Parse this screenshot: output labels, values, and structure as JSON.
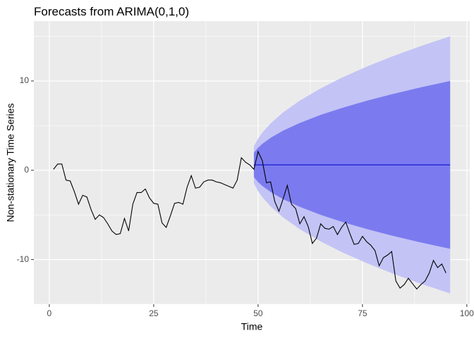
{
  "chart_data": {
    "type": "line",
    "title": "Forecasts from ARIMA(0,1,0)",
    "x_label": "Time",
    "y_label": "Non-stationary Time Series",
    "xlim": [
      -3.7,
      100.7
    ],
    "ylim": [
      -15,
      16.7
    ],
    "xticks": [
      0,
      25,
      50,
      75,
      100
    ],
    "yticks": [
      -10,
      0,
      10
    ],
    "grid": true,
    "series": [
      {
        "color": "#000000",
        "x": [
          1,
          2,
          3,
          4,
          5,
          6,
          7,
          8,
          9,
          10,
          11,
          12,
          13,
          14,
          15,
          16,
          17,
          18,
          19,
          20,
          21,
          22,
          23,
          24,
          25,
          26,
          27,
          28,
          29,
          30,
          31,
          32,
          33,
          34,
          35,
          36,
          37,
          38,
          39,
          40,
          41,
          42,
          43,
          44,
          45,
          46,
          47,
          48,
          49,
          50,
          51,
          52,
          53,
          54,
          55,
          56,
          57,
          58,
          59,
          60,
          61,
          62,
          63,
          64,
          65,
          66,
          67,
          68,
          69,
          70,
          71,
          72,
          73,
          74,
          75,
          76,
          77,
          78,
          79,
          80,
          81,
          82,
          83,
          84,
          85,
          86,
          87,
          88,
          89,
          90,
          91,
          92,
          93,
          94,
          95
        ],
        "values": [
          0.1,
          0.7,
          0.7,
          -1.1,
          -1.2,
          -2.4,
          -3.8,
          -2.8,
          -3.0,
          -4.4,
          -5.5,
          -5.0,
          -5.3,
          -6.0,
          -6.8,
          -7.2,
          -7.1,
          -5.4,
          -6.8,
          -3.8,
          -2.5,
          -2.5,
          -2.1,
          -3.1,
          -3.7,
          -3.8,
          -5.9,
          -6.4,
          -5.1,
          -3.7,
          -3.6,
          -3.8,
          -1.9,
          -0.6,
          -2.0,
          -1.9,
          -1.3,
          -1.1,
          -1.1,
          -1.3,
          -1.4,
          -1.6,
          -1.8,
          -2.0,
          -1.1,
          1.4,
          0.9,
          0.6,
          0.1,
          2.1,
          1.1,
          -1.4,
          -1.3,
          -3.5,
          -4.6,
          -3.2,
          -1.7,
          -3.8,
          -4.3,
          -6.0,
          -5.2,
          -6.3,
          -8.2,
          -7.6,
          -6.0,
          -6.5,
          -6.6,
          -6.3,
          -7.2,
          -6.4,
          -5.8,
          -7.1,
          -8.3,
          -8.2,
          -7.4,
          -8.0,
          -8.4,
          -9.0,
          -10.7,
          -9.8,
          -9.5,
          -9.1,
          -12.4,
          -13.2,
          -12.8,
          -12.1,
          -12.7,
          -13.3,
          -12.8,
          -12.4,
          -11.5,
          -10.1,
          -10.9,
          -10.5,
          -11.5
        ]
      }
    ],
    "forecast": {
      "x": [
        49,
        50,
        51,
        53,
        56,
        60,
        65,
        70,
        76,
        82,
        89,
        96
      ],
      "mean": [
        0.6,
        0.6,
        0.6,
        0.6,
        0.6,
        0.6,
        0.6,
        0.6,
        0.6,
        0.6,
        0.6,
        0.6
      ],
      "lo80": [
        -0.76,
        -1.32,
        -1.75,
        -2.43,
        -3.24,
        -4.1,
        -5.0,
        -5.76,
        -6.58,
        -7.31,
        -8.09,
        -8.8
      ],
      "hi80": [
        1.96,
        2.52,
        2.95,
        3.63,
        4.44,
        5.3,
        6.2,
        6.96,
        7.78,
        8.51,
        9.29,
        10.0
      ],
      "lo95": [
        -1.48,
        -2.34,
        -3.0,
        -4.05,
        -5.28,
        -6.6,
        -7.97,
        -9.15,
        -10.4,
        -11.52,
        -12.71,
        -13.8
      ],
      "hi95": [
        2.68,
        3.54,
        4.2,
        5.25,
        6.48,
        7.8,
        9.17,
        10.35,
        11.6,
        12.72,
        13.91,
        15.0
      ],
      "mean_color": "#0000cc",
      "color80": "#7b7bef",
      "color95": "#c3c3f6"
    }
  }
}
